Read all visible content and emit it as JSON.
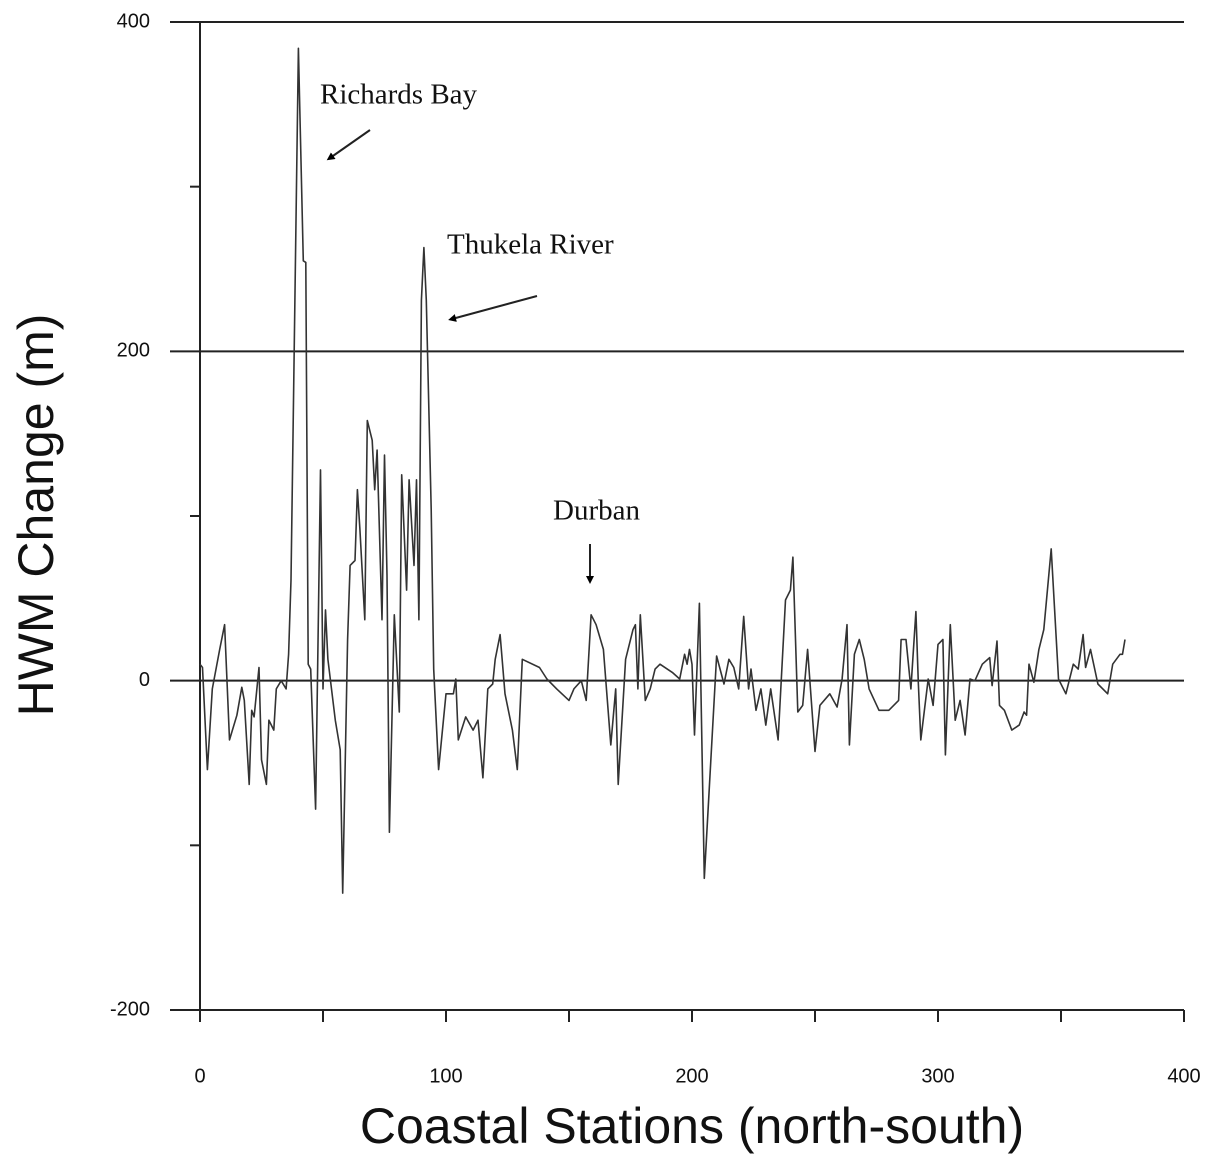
{
  "chart_data": {
    "type": "line",
    "x_label": "Coastal Stations (north-south)",
    "y_label": "HWM Change (m)",
    "annotations": [
      "Richards Bay",
      "Thukela River",
      "Durban"
    ],
    "xlim": [
      0,
      400
    ],
    "ylim": [
      -200,
      400
    ],
    "xticks": [
      0,
      100,
      200,
      300,
      400
    ],
    "xticks_minor": [
      50,
      150,
      250,
      350
    ],
    "yticks": [
      -200,
      0,
      200,
      400
    ],
    "yticks_minor": [
      -100,
      100,
      300
    ],
    "grid": true,
    "color": "#333333",
    "x": [
      0,
      1,
      3,
      5,
      8,
      10,
      12,
      15,
      17,
      18,
      20,
      21,
      22,
      24,
      25,
      27,
      28,
      30,
      31,
      33,
      35,
      36,
      37,
      40,
      42,
      43,
      44,
      45,
      47,
      49,
      50,
      51,
      52,
      55,
      57,
      58,
      60,
      61,
      63,
      64,
      65,
      67,
      68,
      70,
      71,
      72,
      74,
      75,
      76,
      77,
      79,
      81,
      82,
      84,
      85,
      87,
      88,
      89,
      90,
      91,
      92,
      94,
      95,
      97,
      100,
      103,
      104,
      105,
      108,
      111,
      113,
      115,
      117,
      119,
      120,
      122,
      124,
      127,
      129,
      131,
      138,
      141,
      145,
      150,
      152,
      155,
      157,
      159,
      161,
      164,
      167,
      169,
      170,
      173,
      176,
      177,
      178,
      179,
      181,
      183,
      185,
      187,
      192,
      195,
      197,
      198,
      199,
      200,
      201,
      203,
      205,
      210,
      213,
      215,
      217,
      219,
      221,
      223,
      224,
      226,
      228,
      230,
      232,
      235,
      238,
      240,
      241,
      243,
      245,
      247,
      250,
      252,
      256,
      259,
      261,
      263,
      264,
      266,
      268,
      270,
      272,
      276,
      280,
      284,
      285,
      287,
      289,
      291,
      292,
      293,
      296,
      298,
      300,
      302,
      303,
      305,
      307,
      309,
      311,
      313,
      315,
      318,
      321,
      322,
      324,
      325,
      327,
      330,
      333,
      335,
      336,
      337,
      339,
      341,
      343,
      346,
      349,
      352,
      355,
      357,
      359,
      360,
      362,
      365,
      369,
      371,
      374,
      375,
      376
    ],
    "values": [
      10,
      8,
      -54,
      -5,
      19,
      34,
      -36,
      -21,
      -4,
      -12,
      -63,
      -18,
      -22,
      8,
      -48,
      -63,
      -24,
      -30,
      -5,
      0,
      -5,
      16,
      61,
      384,
      255,
      254,
      10,
      7,
      -78,
      128,
      -5,
      43,
      13,
      -24,
      -42,
      -129,
      25,
      70,
      73,
      116,
      92,
      37,
      158,
      146,
      116,
      140,
      37,
      137,
      64,
      -92,
      40,
      -19,
      125,
      55,
      122,
      70,
      122,
      37,
      231,
      263,
      231,
      104,
      7,
      -54,
      -8,
      -8,
      1,
      -36,
      -22,
      -30,
      -24,
      -59,
      -5,
      -2,
      13,
      28,
      -8,
      -30,
      -54,
      13,
      8,
      1,
      -5,
      -12,
      -5,
      0,
      -12,
      40,
      34,
      19,
      -39,
      -5,
      -63,
      13,
      31,
      34,
      -5,
      40,
      -12,
      -5,
      7,
      10,
      5,
      1,
      16,
      10,
      19,
      10,
      -33,
      47,
      -120,
      15,
      -2,
      13,
      8,
      -5,
      39,
      -5,
      7,
      -18,
      -5,
      -27,
      -5,
      -36,
      49,
      55,
      75,
      -19,
      -15,
      19,
      -43,
      -15,
      -8,
      -16,
      1,
      34,
      -39,
      16,
      25,
      13,
      -5,
      -18,
      -18,
      -12,
      25,
      25,
      -5,
      42,
      -1,
      -36,
      1,
      -15,
      22,
      25,
      -45,
      34,
      -24,
      -12,
      -33,
      1,
      0,
      10,
      14,
      -3,
      24,
      -15,
      -18,
      -30,
      -27,
      -19,
      -21,
      10,
      -1,
      19,
      31,
      80,
      1,
      -8,
      10,
      7,
      28,
      8,
      19,
      -2,
      -8,
      10,
      16,
      16,
      25
    ]
  }
}
